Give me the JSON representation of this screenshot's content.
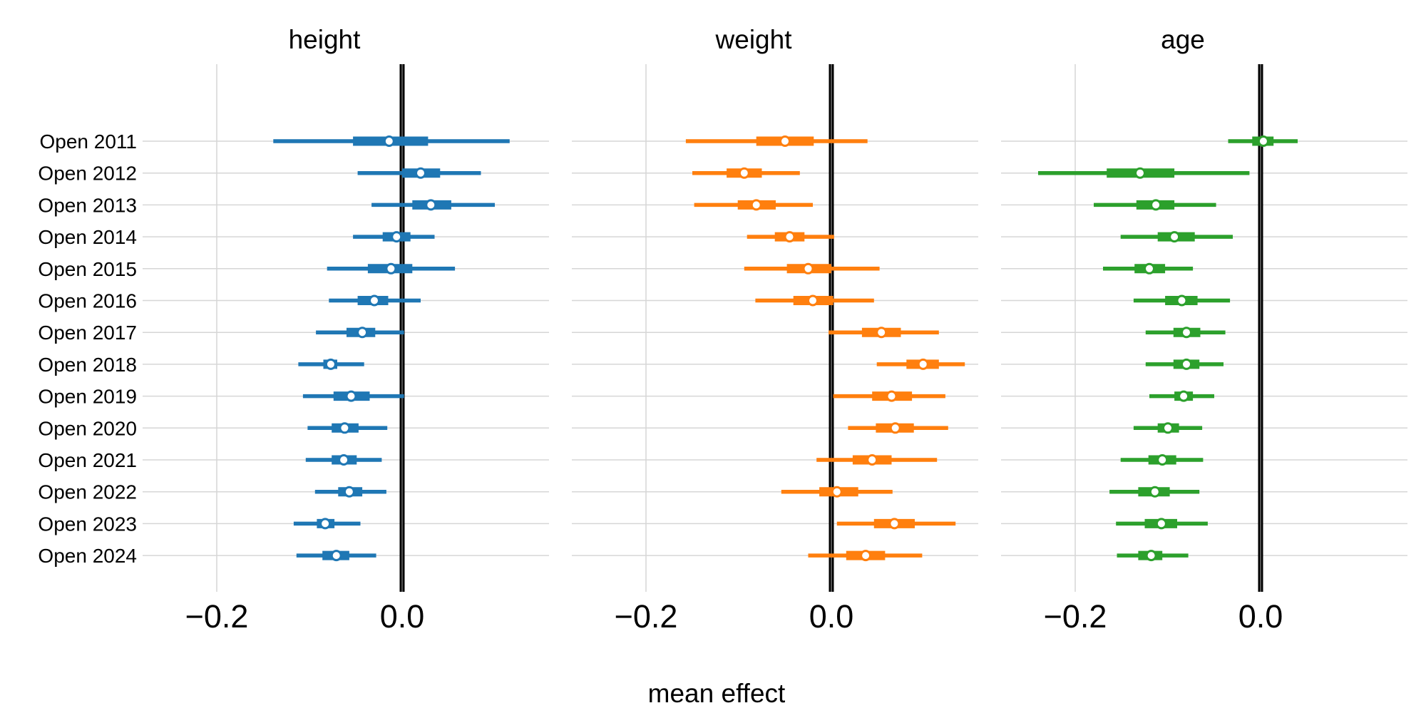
{
  "chart_data": {
    "type": "forest",
    "xlabel": "mean effect",
    "categories": [
      "Open 2011",
      "Open 2012",
      "Open 2013",
      "Open 2014",
      "Open 2015",
      "Open 2016",
      "Open 2017",
      "Open 2018",
      "Open 2019",
      "Open 2020",
      "Open 2021",
      "Open 2022",
      "Open 2023",
      "Open 2024"
    ],
    "xticks": [
      -0.2,
      0.0
    ],
    "xtick_labels": [
      "−0.2",
      "0.0"
    ],
    "xlim": [
      -0.28,
      0.16
    ],
    "reference_line": 0.0,
    "grid": true,
    "panels": [
      {
        "title": "height",
        "color": "#1f77b4",
        "mean": [
          -0.014,
          0.02,
          0.031,
          -0.006,
          -0.012,
          -0.03,
          -0.043,
          -0.077,
          -0.055,
          -0.062,
          -0.063,
          -0.057,
          -0.083,
          -0.071
        ],
        "hdi_50": [
          [
            -0.053,
            0.028
          ],
          [
            0.0,
            0.041
          ],
          [
            0.011,
            0.053
          ],
          [
            -0.021,
            0.009
          ],
          [
            -0.037,
            0.011
          ],
          [
            -0.048,
            -0.015
          ],
          [
            -0.06,
            -0.029
          ],
          [
            -0.085,
            -0.07
          ],
          [
            -0.074,
            -0.035
          ],
          [
            -0.076,
            -0.047
          ],
          [
            -0.076,
            -0.049
          ],
          [
            -0.069,
            -0.043
          ],
          [
            -0.092,
            -0.073
          ],
          [
            -0.086,
            -0.057
          ]
        ],
        "hdi_94": [
          [
            -0.139,
            0.116
          ],
          [
            -0.048,
            0.085
          ],
          [
            -0.033,
            0.1
          ],
          [
            -0.053,
            0.035
          ],
          [
            -0.081,
            0.057
          ],
          [
            -0.079,
            0.02
          ],
          [
            -0.093,
            0.002
          ],
          [
            -0.112,
            -0.041
          ],
          [
            -0.107,
            0.002
          ],
          [
            -0.102,
            -0.016
          ],
          [
            -0.104,
            -0.022
          ],
          [
            -0.094,
            -0.017
          ],
          [
            -0.117,
            -0.045
          ],
          [
            -0.114,
            -0.028
          ]
        ]
      },
      {
        "title": "weight",
        "color": "#ff7f0e",
        "mean": [
          -0.05,
          -0.094,
          -0.081,
          -0.045,
          -0.025,
          -0.02,
          0.054,
          0.099,
          0.065,
          0.069,
          0.044,
          0.006,
          0.068,
          0.037
        ],
        "hdi_50": [
          [
            -0.081,
            -0.019
          ],
          [
            -0.113,
            -0.075
          ],
          [
            -0.101,
            -0.06
          ],
          [
            -0.061,
            -0.029
          ],
          [
            -0.048,
            0.0
          ],
          [
            -0.041,
            0.002
          ],
          [
            0.033,
            0.075
          ],
          [
            0.081,
            0.116
          ],
          [
            0.044,
            0.087
          ],
          [
            0.048,
            0.089
          ],
          [
            0.023,
            0.065
          ],
          [
            -0.013,
            0.029
          ],
          [
            0.046,
            0.09
          ],
          [
            0.016,
            0.058
          ]
        ],
        "hdi_94": [
          [
            -0.157,
            0.039
          ],
          [
            -0.15,
            -0.034
          ],
          [
            -0.148,
            -0.02
          ],
          [
            -0.091,
            0.003
          ],
          [
            -0.094,
            0.052
          ],
          [
            -0.082,
            0.046
          ],
          [
            -0.003,
            0.116
          ],
          [
            0.049,
            0.144
          ],
          [
            0.002,
            0.123
          ],
          [
            0.018,
            0.126
          ],
          [
            -0.016,
            0.114
          ],
          [
            -0.054,
            0.066
          ],
          [
            0.006,
            0.134
          ],
          [
            -0.025,
            0.098
          ]
        ]
      },
      {
        "title": "age",
        "color": "#2ca02c",
        "mean": [
          0.003,
          -0.13,
          -0.113,
          -0.093,
          -0.12,
          -0.085,
          -0.08,
          -0.08,
          -0.083,
          -0.1,
          -0.106,
          -0.114,
          -0.107,
          -0.118
        ],
        "hdi_50": [
          [
            -0.009,
            0.014
          ],
          [
            -0.166,
            -0.093
          ],
          [
            -0.134,
            -0.093
          ],
          [
            -0.111,
            -0.071
          ],
          [
            -0.136,
            -0.103
          ],
          [
            -0.103,
            -0.068
          ],
          [
            -0.094,
            -0.065
          ],
          [
            -0.094,
            -0.066
          ],
          [
            -0.093,
            -0.073
          ],
          [
            -0.111,
            -0.088
          ],
          [
            -0.121,
            -0.091
          ],
          [
            -0.132,
            -0.098
          ],
          [
            -0.125,
            -0.09
          ],
          [
            -0.132,
            -0.106
          ]
        ],
        "hdi_94": [
          [
            -0.035,
            0.04
          ],
          [
            -0.24,
            -0.012
          ],
          [
            -0.18,
            -0.048
          ],
          [
            -0.151,
            -0.03
          ],
          [
            -0.17,
            -0.073
          ],
          [
            -0.137,
            -0.033
          ],
          [
            -0.124,
            -0.038
          ],
          [
            -0.124,
            -0.04
          ],
          [
            -0.12,
            -0.05
          ],
          [
            -0.137,
            -0.063
          ],
          [
            -0.151,
            -0.062
          ],
          [
            -0.163,
            -0.066
          ],
          [
            -0.156,
            -0.057
          ],
          [
            -0.155,
            -0.078
          ]
        ]
      }
    ]
  }
}
